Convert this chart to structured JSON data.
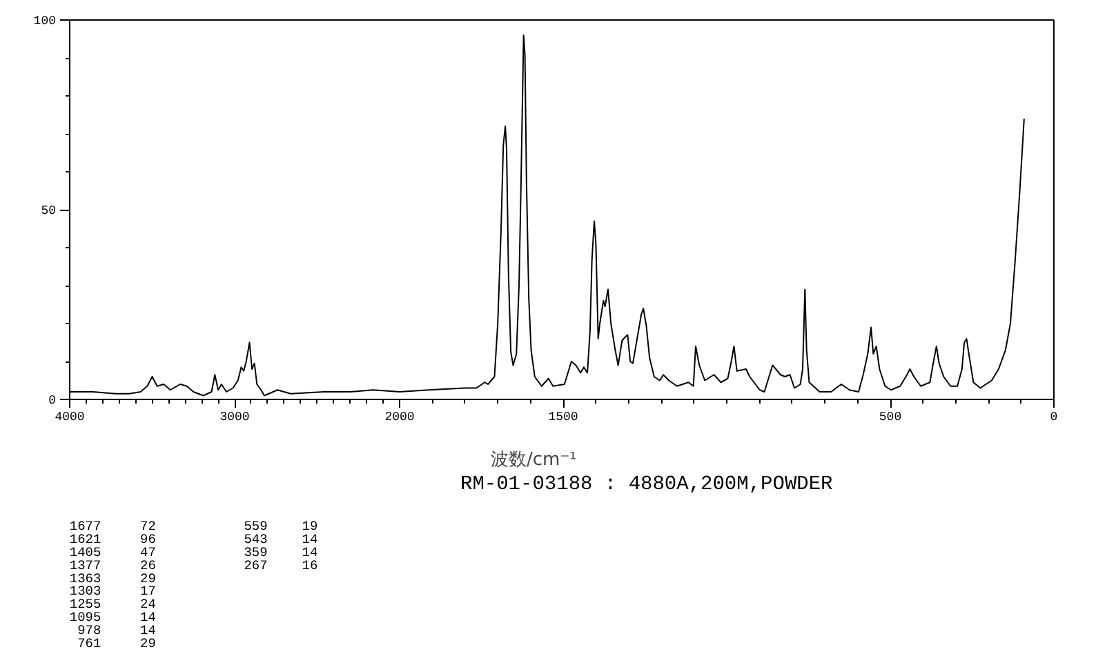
{
  "chart_data": [
    {
      "type": "line",
      "color": "#000000",
      "xlim": [
        4000,
        2000
      ],
      "ylim": [
        0,
        100
      ],
      "x": [
        4000,
        3860,
        3720,
        3640,
        3570,
        3530,
        3500,
        3470,
        3430,
        3390,
        3330,
        3290,
        3250,
        3190,
        3140,
        3120,
        3100,
        3080,
        3050,
        3010,
        2980,
        2960,
        2945,
        2930,
        2910,
        2895,
        2880,
        2865,
        2840,
        2820,
        2740,
        2660,
        2460,
        2300,
        2160,
        2000
      ],
      "values": [
        2,
        2,
        1.5,
        1.5,
        2,
        3.5,
        6,
        3.5,
        4,
        2.5,
        4,
        3.5,
        2,
        1,
        2,
        6.5,
        2.5,
        4,
        2,
        3,
        5,
        8.5,
        7.5,
        10,
        15,
        8,
        9.5,
        4,
        2.5,
        1,
        2.5,
        1.5,
        2,
        2,
        2.5,
        2
      ],
      "xticks": [
        4000,
        {
          "value": 3900,
          "label": null
        },
        {
          "value": 3800,
          "label": null
        },
        {
          "value": 3700,
          "label": null
        },
        {
          "value": 3600,
          "label": null
        },
        {
          "value": 3500,
          "label": null
        },
        {
          "value": 3400,
          "label": null
        },
        {
          "value": 3300,
          "label": null
        },
        {
          "value": 3200,
          "label": null
        },
        {
          "value": 3100,
          "label": null
        },
        3000,
        {
          "value": 2900,
          "label": null
        },
        {
          "value": 2800,
          "label": null
        },
        {
          "value": 2700,
          "label": null
        },
        {
          "value": 2600,
          "label": null
        },
        {
          "value": 2500,
          "label": null
        },
        {
          "value": 2400,
          "label": null
        },
        {
          "value": 2300,
          "label": null
        },
        {
          "value": 2200,
          "label": null
        },
        {
          "value": 2100,
          "label": null
        }
      ],
      "yticks": [
        0,
        {
          "value": 10,
          "label": null
        },
        {
          "value": 20,
          "label": null
        },
        {
          "value": 30,
          "label": null
        },
        {
          "value": 40,
          "label": null
        },
        50,
        {
          "value": 60,
          "label": null
        },
        {
          "value": 70,
          "label": null
        },
        {
          "value": 80,
          "label": null
        },
        {
          "value": 90,
          "label": null
        },
        100
      ],
      "annotations": [
        "1677",
        "72",
        "1621",
        "96",
        "1405",
        "47",
        "1377",
        "26",
        "1363",
        "29",
        "1303",
        "17",
        "1255",
        "24",
        "1095",
        "14",
        "978",
        "14",
        "761",
        "29",
        "559",
        "19",
        "543",
        "14",
        "359",
        "14",
        "267",
        "16"
      ]
    },
    {
      "type": "line",
      "color": "#000000",
      "xlim": [
        2000,
        0
      ],
      "ylim": [
        0,
        100
      ],
      "tick_labels": "x",
      "xlabel": "波数/cm⁻¹",
      "x": [
        2000,
        1910,
        1800,
        1765,
        1740,
        1730,
        1710,
        1700,
        1690,
        1683,
        1677,
        1673,
        1667,
        1660,
        1653,
        1643,
        1635,
        1629,
        1621,
        1617,
        1612,
        1605,
        1598,
        1587,
        1566,
        1545,
        1531,
        1496,
        1475,
        1461,
        1447,
        1437,
        1426,
        1418,
        1412,
        1405,
        1400,
        1393,
        1388,
        1377,
        1372,
        1363,
        1354,
        1341,
        1332,
        1320,
        1310,
        1303,
        1295,
        1287,
        1274,
        1261,
        1255,
        1246,
        1236,
        1222,
        1205,
        1194,
        1177,
        1152,
        1117,
        1102,
        1095,
        1084,
        1067,
        1039,
        1018,
        997,
        986,
        978,
        969,
        941,
        930,
        899,
        885,
        860,
        850,
        836,
        822,
        807,
        793,
        775,
        768,
        764,
        761,
        756,
        748,
        716,
        681,
        650,
        625,
        597,
        583,
        569,
        559,
        552,
        543,
        533,
        516,
        498,
        470,
        449,
        440,
        428,
        407,
        379,
        369,
        359,
        351,
        337,
        316,
        295,
        281,
        274,
        267,
        260,
        246,
        225,
        190,
        169,
        148,
        133,
        119,
        105,
        91
      ],
      "values": [
        2,
        2.5,
        3,
        3,
        4.5,
        4,
        6,
        20,
        44.5,
        67,
        72,
        66,
        32.5,
        12.5,
        9,
        12,
        30,
        56.5,
        96,
        91,
        56.5,
        26.5,
        13,
        6,
        3.5,
        5.5,
        3.5,
        4,
        10,
        9,
        7,
        8.5,
        7,
        18,
        37,
        47,
        41,
        16,
        20,
        26,
        24.5,
        29,
        20,
        13,
        9,
        15.5,
        16.5,
        17,
        10,
        9.5,
        16,
        22.5,
        24,
        19.5,
        11,
        6,
        5,
        6.5,
        5,
        3.5,
        4.5,
        3.5,
        14,
        9,
        5,
        6.5,
        4.5,
        5.5,
        10,
        14,
        7.5,
        8,
        6,
        2.5,
        2,
        9,
        8,
        6.5,
        6,
        6.5,
        3,
        4,
        8,
        20,
        29,
        13,
        4.5,
        2,
        2,
        4,
        2.5,
        2,
        6.5,
        12,
        19,
        12,
        14,
        8,
        3.5,
        2.5,
        3.5,
        6.5,
        8,
        6,
        3.5,
        4.5,
        9.5,
        14,
        9.5,
        6,
        3.5,
        3.5,
        8,
        15,
        16,
        12,
        4.5,
        3,
        5,
        8,
        13,
        20,
        36,
        54,
        74
      ],
      "xticks": [
        2000,
        {
          "value": 1900,
          "label": null
        },
        {
          "value": 1800,
          "label": null
        },
        {
          "value": 1700,
          "label": null
        },
        {
          "value": 1600,
          "label": null
        },
        1500,
        {
          "value": 1400,
          "label": null
        },
        {
          "value": 1300,
          "label": null
        },
        {
          "value": 1200,
          "label": null
        },
        {
          "value": 1100,
          "label": null
        },
        {
          "value": 1000,
          "label": null
        },
        {
          "value": 900,
          "label": null
        },
        {
          "value": 800,
          "label": null
        },
        {
          "value": 700,
          "label": null
        },
        {
          "value": 600,
          "label": null
        },
        500,
        {
          "value": 400,
          "label": null
        },
        {
          "value": 300,
          "label": null
        },
        {
          "value": 200,
          "label": null
        },
        {
          "value": 100,
          "label": null
        },
        0
      ],
      "annotations": [
        "RM-01-03188 : 4880A,200M,POWDER"
      ]
    }
  ]
}
